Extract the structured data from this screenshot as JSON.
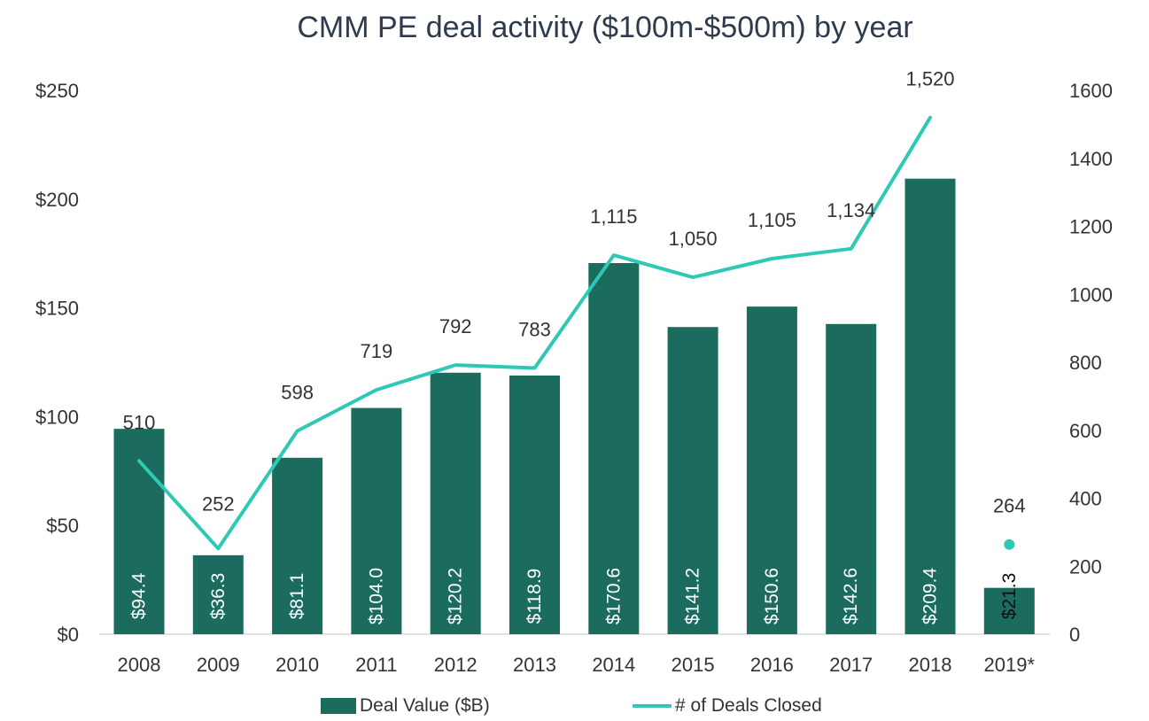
{
  "chart_data": {
    "type": "bar",
    "title": "CMM PE deal activity ($100m-$500m) by year",
    "categories": [
      "2008",
      "2009",
      "2010",
      "2011",
      "2012",
      "2013",
      "2014",
      "2015",
      "2016",
      "2017",
      "2018",
      "2019*"
    ],
    "series": [
      {
        "name": "Deal Value ($B)",
        "type": "bar",
        "axis": "left",
        "values": [
          94.4,
          36.3,
          81.1,
          104.0,
          120.2,
          118.9,
          170.6,
          141.2,
          150.6,
          142.6,
          209.4,
          21.3
        ],
        "labels": [
          "$94.4",
          "$36.3",
          "$81.1",
          "$104.0",
          "$120.2",
          "$118.9",
          "$170.6",
          "$141.2",
          "$150.6",
          "$142.6",
          "$209.4",
          "$21.3"
        ]
      },
      {
        "name": "# of Deals Closed",
        "type": "line",
        "axis": "right",
        "values": [
          510,
          252,
          598,
          719,
          792,
          783,
          1115,
          1050,
          1105,
          1134,
          1520,
          264
        ],
        "labels": [
          "510",
          "252",
          "598",
          "719",
          "792",
          "783",
          "1,115",
          "1,050",
          "1,105",
          "1,134",
          "1,520",
          "264"
        ],
        "connected_through": "2018"
      }
    ],
    "y_left": {
      "ylim": [
        0,
        250
      ],
      "ticks": [
        0,
        50,
        100,
        150,
        200,
        250
      ],
      "tick_labels": [
        "$0",
        "$50",
        "$100",
        "$150",
        "$200",
        "$250"
      ]
    },
    "y_right": {
      "ylim": [
        0,
        1600
      ],
      "ticks": [
        0,
        200,
        400,
        600,
        800,
        1000,
        1200,
        1400,
        1600
      ],
      "tick_labels": [
        "0",
        "200",
        "400",
        "600",
        "800",
        "1000",
        "1200",
        "1400",
        "1600"
      ]
    },
    "grid": false,
    "legend_position": "bottom",
    "colors": {
      "bar": "#1b6b5f",
      "line": "#2ec9b4",
      "title": "#2e3b4e",
      "text": "#333333"
    }
  }
}
